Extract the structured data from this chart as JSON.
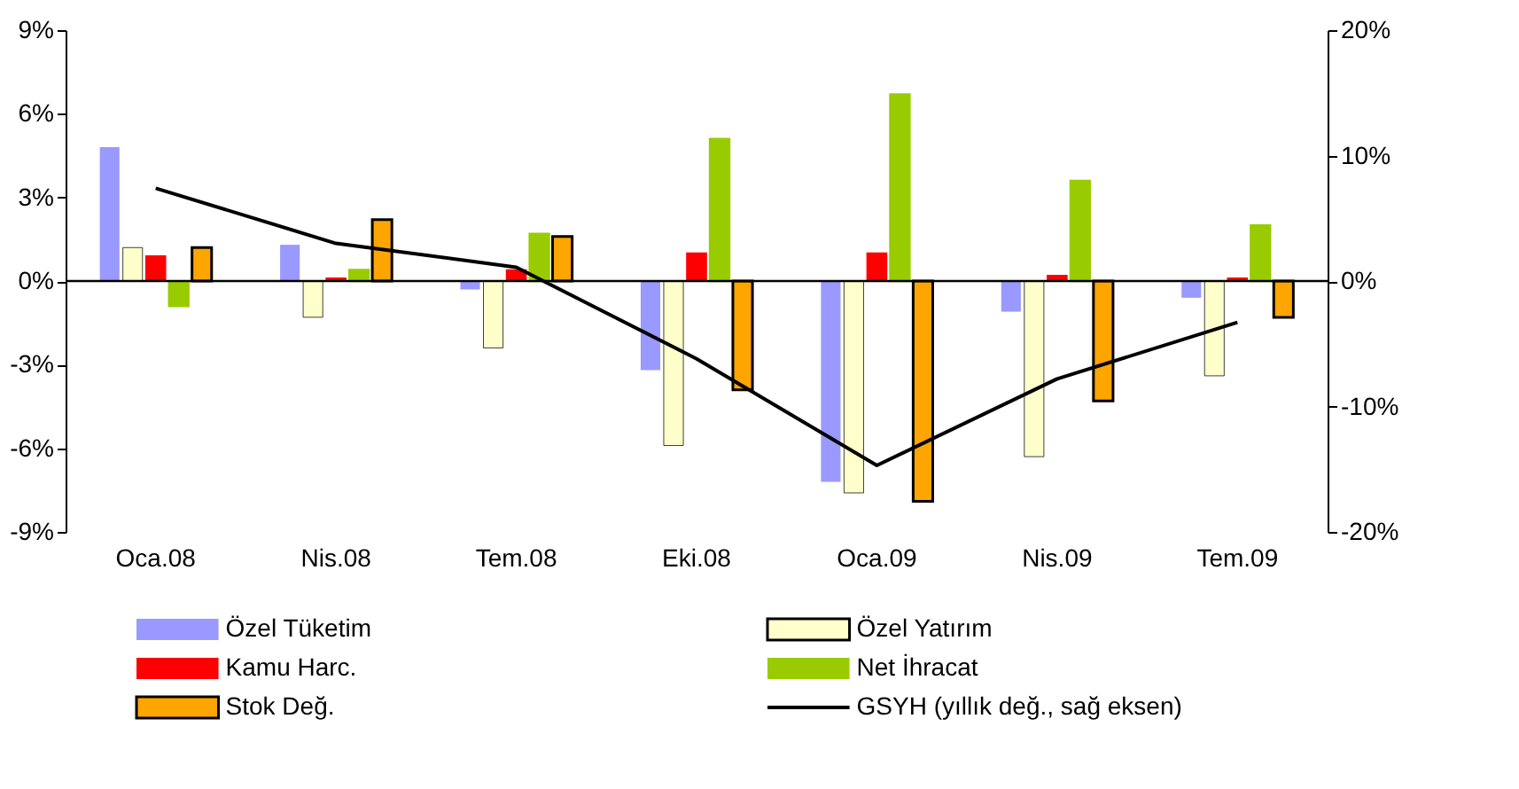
{
  "chart_data": {
    "type": "bar",
    "categories": [
      "Oca.08",
      "Nis.08",
      "Tem.08",
      "Eki.08",
      "Oca.09",
      "Nis.09",
      "Tem.09"
    ],
    "series": [
      {
        "name": "Özel Tüketim",
        "color": "#9999ff",
        "values": [
          4.8,
          1.3,
          -0.3,
          -3.2,
          -7.2,
          -1.1,
          -0.6
        ]
      },
      {
        "name": "Özel Yatırım",
        "color": "#ffffcc",
        "values": [
          1.2,
          -1.3,
          -2.4,
          -5.9,
          -7.6,
          -6.3,
          -3.4
        ]
      },
      {
        "name": "Kamu Harc.",
        "color": "#ff0000",
        "values": [
          0.9,
          0.1,
          0.4,
          1.0,
          1.0,
          0.2,
          0.1
        ]
      },
      {
        "name": "Net İhracat",
        "color": "#99cc00",
        "values": [
          -0.9,
          0.4,
          1.7,
          5.1,
          6.7,
          3.6,
          2.0
        ]
      },
      {
        "name": "Stok Değ.",
        "color": "#ffa500",
        "values": [
          1.2,
          2.2,
          1.6,
          -3.9,
          -7.9,
          -4.3,
          -1.3
        ]
      },
      {
        "name": "GSYH (yıllık değ., sağ eksen)",
        "color": "#000000",
        "type": "line",
        "axis": "y2",
        "values": [
          7.4,
          3.0,
          1.1,
          -6.2,
          -14.7,
          -7.8,
          -3.3
        ]
      }
    ],
    "ylim": [
      -9,
      9
    ],
    "yticks": [
      {
        "value": -9,
        "label": "-9%"
      },
      {
        "value": -6,
        "label": "-6%"
      },
      {
        "value": -3,
        "label": "-3%"
      },
      {
        "value": 0,
        "label": "0%"
      },
      {
        "value": 3,
        "label": "3%"
      },
      {
        "value": 6,
        "label": "6%"
      },
      {
        "value": 9,
        "label": "9%"
      }
    ],
    "y2lim": [
      -20,
      20
    ],
    "y2ticks": [
      {
        "value": -20,
        "label": "-20%"
      },
      {
        "value": -10,
        "label": "-10%"
      },
      {
        "value": 0,
        "label": "0%"
      },
      {
        "value": 10,
        "label": "10%"
      },
      {
        "value": 20,
        "label": "20%"
      }
    ],
    "ref_lines": [
      {
        "axis": "y",
        "value": 0,
        "color": "#000000"
      }
    ],
    "grid": false,
    "legend": "bottom"
  }
}
